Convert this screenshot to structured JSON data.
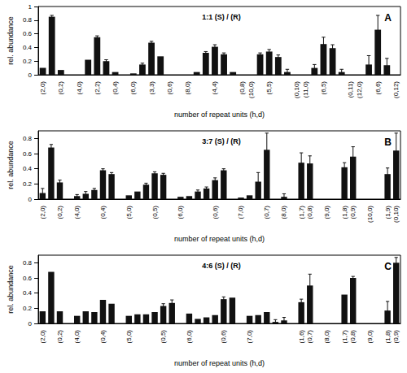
{
  "chart_data": [
    {
      "type": "bar",
      "title": "1:1 (S) / (R)",
      "annotations": [
        "A"
      ],
      "x_label": "number of repeat units (h,d)",
      "y_label": "rel. abundance",
      "color": "#111111",
      "categories": [
        "(2,0)",
        null,
        "(0,2)",
        null,
        "(4,0)",
        null,
        "(2,2)",
        null,
        "(0,4)",
        null,
        "(6,0)",
        null,
        "(3,3)",
        null,
        "(0,6)",
        null,
        "(8,0)",
        null,
        null,
        "(4,4)",
        null,
        null,
        "(0,8)",
        "(10,0)",
        null,
        "(5,5)",
        null,
        null,
        "(0,10)",
        "(11,0)",
        null,
        "(6,5)",
        null,
        null,
        "(0,11)",
        "(12,0)",
        null,
        "(6,6)",
        null,
        "(0,12)"
      ],
      "values": [
        0.1,
        0.85,
        0.07,
        null,
        null,
        0.22,
        0.55,
        0.2,
        0.04,
        null,
        0.02,
        0.15,
        0.47,
        0.27,
        null,
        null,
        null,
        0.04,
        0.32,
        0.41,
        0.3,
        0.04,
        null,
        null,
        0.3,
        0.34,
        0.26,
        0.04,
        null,
        null,
        0.1,
        0.45,
        0.39,
        0.04,
        null,
        null,
        0.15,
        0.66,
        0.14,
        null
      ],
      "errors": [
        null,
        0.02,
        null,
        null,
        null,
        null,
        0.02,
        0.02,
        null,
        null,
        null,
        0.02,
        0.02,
        null,
        null,
        null,
        null,
        null,
        0.02,
        0.03,
        0.02,
        null,
        null,
        null,
        0.02,
        0.03,
        0.03,
        0.04,
        null,
        null,
        0.05,
        0.1,
        0.05,
        0.04,
        null,
        null,
        0.13,
        0.21,
        0.1,
        null
      ],
      "ylim": [
        0,
        1
      ],
      "yticks": [
        0,
        0.2,
        0.4,
        0.6,
        0.8,
        1
      ],
      "grid": false
    },
    {
      "type": "bar",
      "title": "3:7 (S) / (R)",
      "annotations": [
        "B"
      ],
      "x_label": "number of repeat units (h,d)",
      "y_label": "rel. abundance",
      "color": "#111111",
      "categories": [
        "(2,0)",
        null,
        "(0,2)",
        null,
        "(4,0)",
        null,
        null,
        "(0,4)",
        null,
        null,
        "(5,0)",
        null,
        null,
        "(0,5)",
        null,
        null,
        "(6,0)",
        null,
        null,
        null,
        "(0,6)",
        null,
        null,
        "(7,0)",
        null,
        null,
        "(0,7)",
        null,
        "(8,0)",
        null,
        "(1,7)",
        "(0,8)",
        null,
        "(9,0)",
        null,
        "(1,8)",
        "(0,9)",
        null,
        "(10,0)",
        null,
        "(1,9)",
        "(0,10)"
      ],
      "values": [
        0.08,
        0.68,
        0.22,
        null,
        0.04,
        0.07,
        0.12,
        0.38,
        0.33,
        null,
        0.05,
        0.1,
        0.19,
        0.34,
        0.32,
        null,
        0.03,
        0.04,
        0.1,
        0.14,
        0.25,
        0.38,
        null,
        0.02,
        0.05,
        0.23,
        0.65,
        null,
        0.03,
        null,
        0.48,
        0.47,
        null,
        null,
        null,
        0.42,
        0.56,
        null,
        null,
        null,
        0.33,
        0.64
      ],
      "errors": [
        0.06,
        0.04,
        0.03,
        null,
        0.02,
        0.03,
        0.02,
        0.02,
        0.02,
        null,
        null,
        null,
        0.02,
        0.02,
        0.02,
        null,
        null,
        null,
        0.02,
        0.02,
        0.03,
        0.02,
        null,
        null,
        null,
        0.12,
        0.22,
        null,
        0.04,
        null,
        0.13,
        0.1,
        null,
        null,
        null,
        0.06,
        0.13,
        null,
        null,
        null,
        0.08,
        0.23
      ],
      "ylim": [
        0,
        0.9
      ],
      "yticks": [
        0,
        0.2,
        0.4,
        0.6,
        0.8
      ],
      "grid": false
    },
    {
      "type": "bar",
      "title": "4:6 (S) / (R)",
      "annotations": [
        "C"
      ],
      "x_label": "number of repeat units (h,d)",
      "y_label": "rel. abundance",
      "color": "#111111",
      "categories": [
        "(2,0)",
        null,
        "(0,2)",
        null,
        "(4,0)",
        null,
        null,
        "(0,4)",
        null,
        null,
        "(5,0)",
        null,
        null,
        null,
        "(0,5)",
        null,
        null,
        "(6,0)",
        null,
        null,
        null,
        "(0,6)",
        null,
        null,
        "(7,0)",
        null,
        null,
        null,
        null,
        null,
        "(1,6)",
        "(0,7)",
        null,
        "(8,0)",
        null,
        "(1,7)",
        "(0,8)",
        null,
        "(9,0)",
        null,
        "(1,8)",
        "(0,9)"
      ],
      "values": [
        0.16,
        0.68,
        0.16,
        null,
        0.1,
        0.16,
        0.15,
        0.31,
        0.26,
        null,
        0.1,
        0.12,
        0.12,
        0.15,
        0.23,
        0.27,
        null,
        0.13,
        0.06,
        0.08,
        0.11,
        0.32,
        0.34,
        null,
        0.1,
        0.11,
        0.15,
        0.02,
        0.04,
        null,
        0.28,
        0.5,
        null,
        null,
        null,
        0.38,
        0.6,
        null,
        null,
        null,
        0.17,
        0.8
      ],
      "errors": [
        null,
        null,
        null,
        null,
        null,
        null,
        null,
        null,
        null,
        null,
        null,
        null,
        null,
        null,
        0.03,
        0.04,
        null,
        null,
        null,
        null,
        null,
        0.03,
        null,
        null,
        null,
        null,
        null,
        0.03,
        0.04,
        null,
        0.04,
        0.15,
        null,
        null,
        null,
        null,
        0.02,
        null,
        null,
        null,
        0.12,
        0.07
      ],
      "ylim": [
        0,
        0.9
      ],
      "yticks": [
        0,
        0.2,
        0.4,
        0.6,
        0.8
      ],
      "grid": false
    }
  ]
}
